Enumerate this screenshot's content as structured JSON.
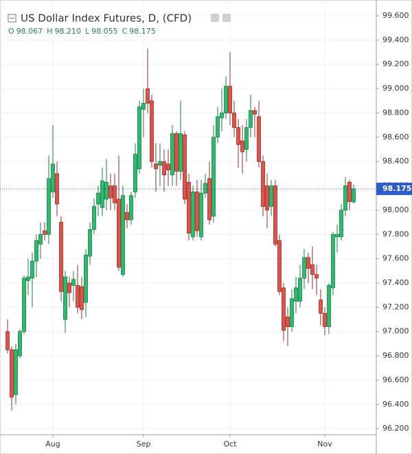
{
  "chart_data": {
    "type": "candlestick",
    "title": "US Dollar Index Futures, D, (CFD)",
    "ohlc_legend": [
      {
        "label": "O",
        "value": "98.067"
      },
      {
        "label": "H",
        "value": "98.210"
      },
      {
        "label": "L",
        "value": "98.055"
      },
      {
        "label": "C",
        "value": "98.175"
      }
    ],
    "categories": [
      null,
      null,
      null,
      null,
      null,
      null,
      null,
      null,
      null,
      null,
      null,
      "Aug",
      null,
      null,
      null,
      null,
      null,
      null,
      null,
      null,
      null,
      null,
      null,
      null,
      null,
      null,
      null,
      null,
      null,
      null,
      null,
      null,
      null,
      "Sep",
      null,
      null,
      null,
      null,
      null,
      null,
      null,
      null,
      null,
      null,
      null,
      null,
      null,
      null,
      null,
      null,
      null,
      null,
      null,
      null,
      "Oct",
      null,
      null,
      null,
      null,
      null,
      null,
      null,
      null,
      null,
      null,
      null,
      null,
      null,
      null,
      null,
      null,
      null,
      null,
      null,
      null,
      null,
      null,
      "Nov",
      null,
      null,
      null,
      null,
      null,
      null,
      null
    ],
    "open": [
      97.0,
      96.85,
      96.48,
      96.8,
      97.0,
      97.42,
      97.44,
      97.58,
      97.72,
      97.83,
      97.8,
      98.15,
      98.3,
      97.9,
      97.1,
      97.4,
      97.38,
      97.38,
      97.37,
      97.24,
      97.62,
      97.84,
      98.05,
      98.02,
      98.09,
      98.2,
      98.2,
      98.09,
      97.47,
      97.98,
      97.92,
      98.15,
      98.34,
      98.83,
      99.0,
      98.9,
      98.38,
      98.37,
      98.4,
      98.38,
      98.29,
      98.63,
      98.32,
      98.62,
      98.23,
      97.78,
      98.15,
      97.78,
      98.14,
      98.26,
      97.95,
      98.6,
      98.76,
      98.8,
      99.02,
      98.8,
      98.68,
      98.57,
      98.5,
      98.68,
      98.82,
      98.77,
      98.4,
      98.2,
      98.03,
      98.2,
      97.75,
      97.36,
      97.12,
      97.04,
      97.25,
      97.25,
      97.44,
      97.61,
      97.55,
      97.47,
      97.26,
      97.15,
      97.04,
      97.36,
      97.78,
      97.78,
      98.0,
      98.23,
      98.067
    ],
    "high": [
      97.1,
      96.88,
      96.9,
      97.02,
      97.46,
      97.6,
      97.65,
      97.8,
      97.9,
      97.9,
      98.45,
      98.7,
      98.4,
      97.95,
      97.5,
      97.45,
      97.5,
      97.55,
      97.45,
      97.68,
      97.9,
      98.1,
      98.2,
      98.35,
      98.42,
      98.3,
      98.3,
      98.45,
      98.2,
      98.05,
      98.15,
      98.55,
      98.9,
      99.0,
      99.33,
      98.95,
      98.55,
      98.55,
      98.5,
      98.5,
      98.7,
      98.65,
      98.9,
      98.65,
      98.3,
      98.2,
      98.25,
      98.25,
      98.3,
      98.4,
      98.7,
      98.85,
      99.0,
      99.1,
      99.3,
      98.9,
      98.75,
      98.7,
      98.75,
      98.95,
      98.85,
      98.9,
      98.45,
      98.3,
      98.25,
      98.25,
      97.8,
      97.4,
      97.2,
      97.35,
      97.45,
      97.55,
      97.68,
      97.65,
      97.7,
      97.55,
      97.35,
      97.2,
      97.4,
      97.82,
      97.88,
      98.05,
      98.27,
      98.25,
      98.21
    ],
    "low": [
      96.82,
      96.35,
      96.4,
      96.78,
      96.98,
      97.3,
      97.2,
      97.45,
      97.6,
      97.75,
      97.72,
      98.1,
      97.95,
      97.25,
      96.99,
      97.2,
      97.25,
      97.15,
      97.1,
      97.12,
      97.55,
      97.8,
      97.95,
      97.95,
      98.0,
      98.0,
      98.0,
      97.5,
      97.45,
      97.85,
      97.88,
      98.1,
      98.3,
      98.6,
      98.8,
      98.35,
      98.15,
      98.2,
      98.15,
      98.2,
      98.2,
      98.2,
      98.25,
      98.05,
      97.75,
      97.75,
      97.78,
      97.75,
      98.1,
      97.88,
      97.9,
      98.55,
      98.65,
      98.75,
      98.7,
      98.6,
      98.35,
      98.3,
      98.4,
      98.6,
      98.6,
      98.35,
      97.95,
      97.85,
      97.95,
      97.7,
      97.3,
      96.92,
      96.88,
      97.0,
      97.15,
      97.2,
      97.35,
      97.4,
      97.35,
      97.3,
      97.05,
      96.97,
      96.98,
      97.3,
      97.65,
      97.75,
      97.95,
      98.0,
      98.055
    ],
    "close": [
      96.85,
      96.46,
      96.85,
      97.0,
      97.44,
      97.45,
      97.58,
      97.75,
      97.8,
      97.8,
      98.26,
      98.38,
      98.05,
      97.33,
      97.45,
      97.32,
      97.43,
      97.2,
      97.18,
      97.63,
      97.84,
      98.03,
      98.14,
      98.24,
      98.23,
      98.1,
      98.06,
      97.53,
      98.12,
      97.92,
      98.12,
      98.46,
      98.85,
      98.88,
      98.88,
      98.4,
      98.34,
      98.4,
      98.29,
      98.33,
      98.63,
      98.32,
      98.63,
      98.09,
      97.81,
      98.15,
      97.83,
      98.14,
      98.22,
      97.92,
      98.6,
      98.77,
      98.8,
      99.02,
      98.8,
      98.68,
      98.54,
      98.48,
      98.68,
      98.82,
      98.79,
      98.4,
      98.03,
      98.0,
      98.2,
      97.72,
      97.33,
      97.01,
      97.04,
      97.27,
      97.36,
      97.44,
      97.61,
      97.52,
      97.47,
      97.44,
      97.15,
      97.04,
      97.38,
      97.8,
      97.8,
      98.0,
      98.2,
      98.07,
      98.175
    ],
    "up_color": "#2dbb6c",
    "down_color": "#e0524a",
    "last_price": 98.175,
    "last_price_color": "#2e5cc6",
    "ylim": [
      96.15,
      99.685
    ],
    "yticks": [
      {
        "value": 96.2,
        "label": "96.200"
      },
      {
        "value": 96.4,
        "label": "96.400"
      },
      {
        "value": 96.6,
        "label": "96.600"
      },
      {
        "value": 96.8,
        "label": "96.800"
      },
      {
        "value": 97.0,
        "label": "97.000"
      },
      {
        "value": 97.2,
        "label": "97.200"
      },
      {
        "value": 97.4,
        "label": "97.400"
      },
      {
        "value": 97.6,
        "label": "97.600"
      },
      {
        "value": 97.8,
        "label": "97.800"
      },
      {
        "value": 98.0,
        "label": "98.000"
      },
      {
        "value": 98.2,
        "label": "98.200"
      },
      {
        "value": 98.4,
        "label": "98.400"
      },
      {
        "value": 98.6,
        "label": "98.600"
      },
      {
        "value": 98.8,
        "label": "98.800"
      },
      {
        "value": 99.0,
        "label": "99.000"
      },
      {
        "value": 99.2,
        "label": "99.200"
      },
      {
        "value": 99.4,
        "label": "99.400"
      },
      {
        "value": 99.6,
        "label": "99.600"
      }
    ],
    "grid": true
  }
}
